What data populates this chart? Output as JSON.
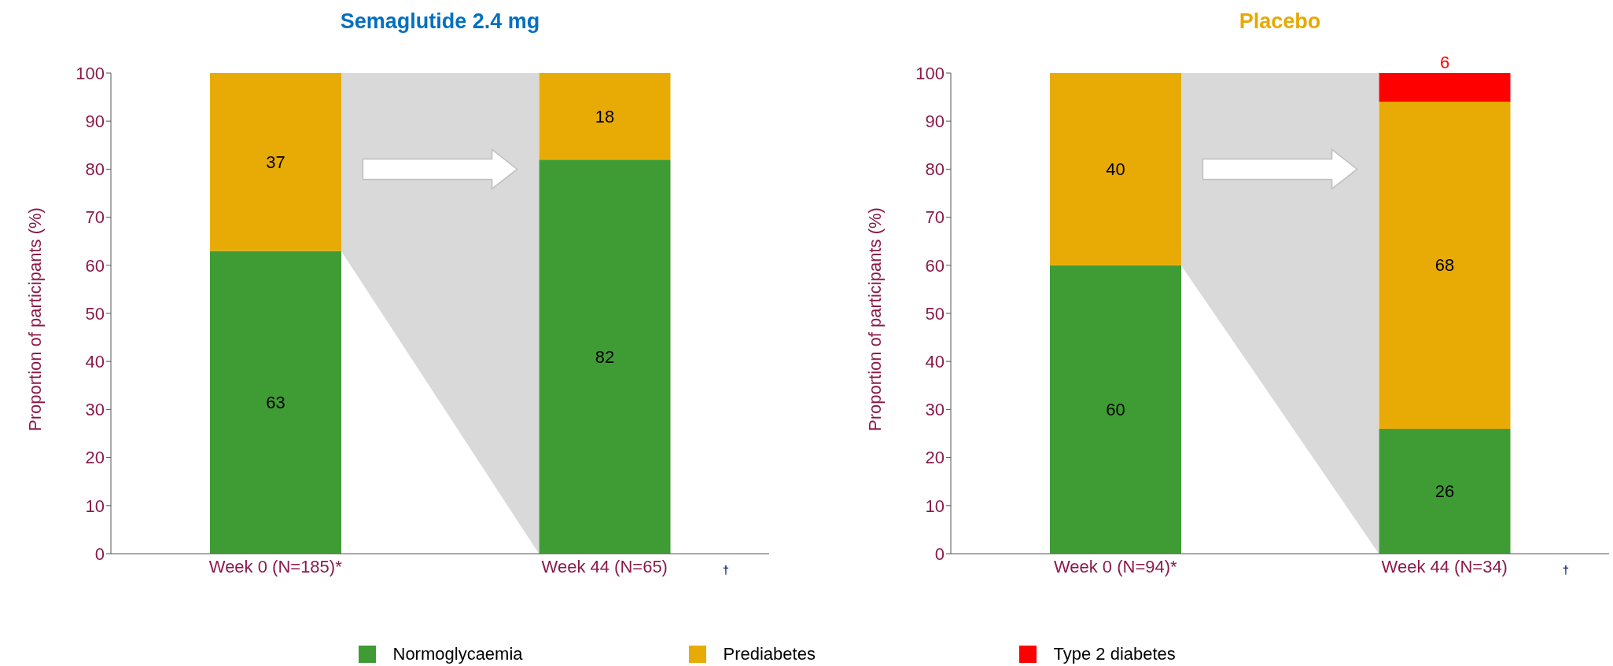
{
  "chart_data": [
    {
      "type": "bar",
      "title": "Semaglutide 2.4 mg",
      "ylabel": "Proportion of participants (%)",
      "categories": [
        "Week 0 (N=185)*",
        "Week 44 (N=65)"
      ],
      "stacked": true,
      "series": [
        {
          "color": "#3f9c35",
          "values": [
            63,
            82
          ]
        },
        {
          "color": "#e8ab06",
          "values": [
            37,
            18
          ]
        }
      ],
      "ylim": [
        0,
        100
      ],
      "yticks": [
        0,
        10,
        20,
        30,
        40,
        50,
        60,
        70,
        80,
        90,
        100
      ],
      "data_labels": true,
      "grid": false,
      "annotations": [
        "†"
      ]
    },
    {
      "type": "bar",
      "title": "Placebo",
      "ylabel": "Proportion of participants (%)",
      "categories": [
        "Week 0 (N=94)*",
        "Week 44 (N=34)"
      ],
      "stacked": true,
      "series": [
        {
          "name": "Normoglycaemia",
          "color": "#3f9c35",
          "values": [
            60,
            26
          ]
        },
        {
          "name": "Prediabetes",
          "color": "#e8ab06",
          "values": [
            40,
            68
          ]
        },
        {
          "name": "Type 2 diabetes",
          "color": "#ff0000",
          "values": [
            null,
            6
          ]
        }
      ],
      "ylim": [
        0,
        100
      ],
      "yticks": [
        0,
        10,
        20,
        30,
        40,
        50,
        60,
        70,
        80,
        90,
        100
      ],
      "data_labels": true,
      "grid": false,
      "legend": "bottom",
      "annotations": [
        "†"
      ]
    }
  ]
}
